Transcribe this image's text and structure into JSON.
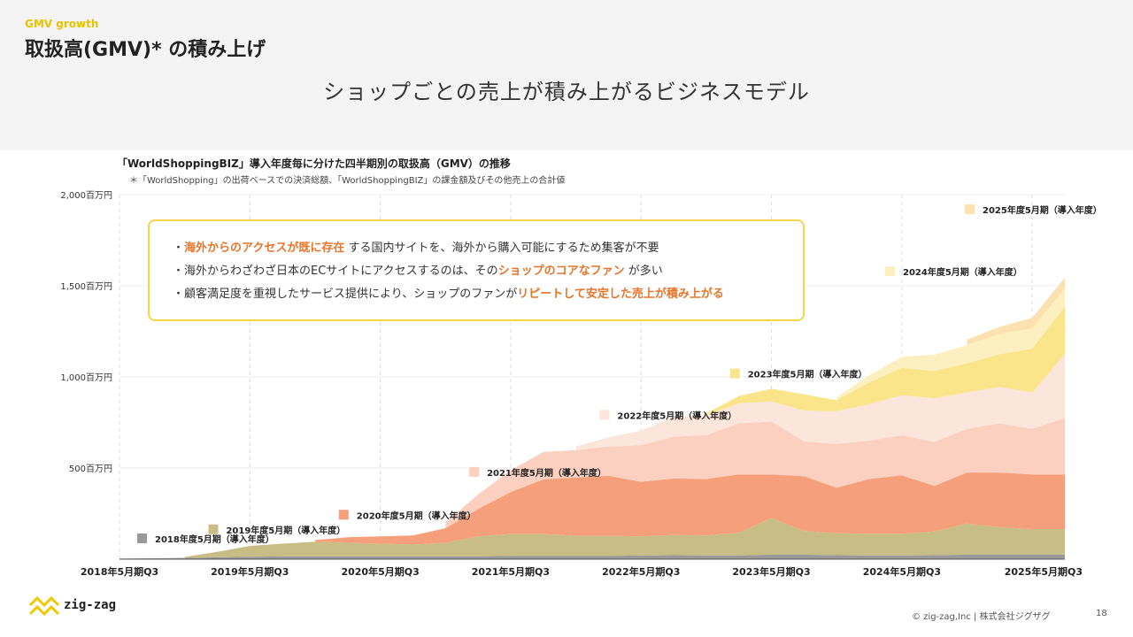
{
  "header": {
    "eyebrow": "GMV growth",
    "title": "取扱高(GMV)* の積み上げ",
    "subtitle": "ショップごとの売上が積み上がるビジネスモデル"
  },
  "callout": {
    "lines": [
      {
        "pre": "・",
        "em": "海外からのアクセスが既に存在",
        "post": " する国内サイトを、海外から購入可能にするため集客が不要"
      },
      {
        "pre": "・海外からわざわざ日本のECサイトにアクセスするのは、その",
        "em": "ショップのコアなファン",
        "post": " が多い"
      },
      {
        "pre": "・顧客満足度を重視したサービス提供により、ショップのファンが",
        "em": "リピートして安定した売上が積み上がる",
        "post": ""
      }
    ]
  },
  "footer": {
    "logo_text": "zig-zag",
    "copyright": "© zig-zag,Inc | 株式会社ジグザグ",
    "page_number": "18"
  },
  "chart_data": {
    "type": "area",
    "stacked": true,
    "title": "「WorldShoppingBIZ」導入年度毎に分けた四半期別の取扱高（GMV）の推移",
    "note": "＊「WorldShopping」の出荷ベースでの決済総額、「WorldShoppingBIZ」の課金額及びその他売上の合計値",
    "ylim": [
      0,
      2000
    ],
    "yticks": [
      {
        "value": 500,
        "label": "500百万円"
      },
      {
        "value": 1000,
        "label": "1,000百万円"
      },
      {
        "value": 1500,
        "label": "1,500百万円"
      },
      {
        "value": 2000,
        "label": "2,000百万円"
      }
    ],
    "xticks": [
      {
        "x": 0,
        "label": "2018年5月期Q3"
      },
      {
        "x": 4,
        "label": "2019年5月期Q3"
      },
      {
        "x": 8,
        "label": "2020年5月期Q3"
      },
      {
        "x": 12,
        "label": "2021年5月期Q3"
      },
      {
        "x": 16,
        "label": "2022年5月期Q3"
      },
      {
        "x": 20,
        "label": "2023年5月期Q3"
      },
      {
        "x": 24,
        "label": "2024年5月期Q3"
      },
      {
        "x": 28,
        "label": "2025年5月期Q3"
      }
    ],
    "grid": "vertical-dashed",
    "series": [
      {
        "name": "2018年度5月期（導入年度）",
        "color": "#999999",
        "start": 0,
        "values": [
          3,
          5,
          7,
          10,
          13,
          15,
          15,
          15,
          15,
          15,
          15,
          15,
          18,
          18,
          18,
          18,
          20,
          22,
          20,
          20,
          25,
          25,
          22,
          20,
          20,
          22,
          25,
          25,
          25,
          25
        ]
      },
      {
        "name": "2019年度5月期（導入年度）",
        "color": "#c8bd85",
        "start": 2,
        "values": [
          0,
          0,
          5,
          30,
          60,
          70,
          80,
          75,
          70,
          65,
          75,
          110,
          120,
          120,
          110,
          110,
          105,
          110,
          110,
          125,
          200,
          130,
          120,
          120,
          120,
          130,
          170,
          150,
          140,
          140
        ]
      },
      {
        "name": "2020年度5月期（導入年度）",
        "color": "#f5a07a",
        "start": 6,
        "values": [
          0,
          0,
          0,
          0,
          0,
          0,
          10,
          30,
          40,
          50,
          80,
          150,
          230,
          300,
          320,
          330,
          300,
          310,
          310,
          320,
          240,
          300,
          250,
          300,
          320,
          250,
          280,
          300,
          300,
          300
        ]
      },
      {
        "name": "2021年度5月期（導入年度）",
        "color": "#fbd0c0",
        "start": 10,
        "values": [
          0,
          0,
          0,
          0,
          0,
          0,
          0,
          0,
          0,
          0,
          30,
          80,
          120,
          150,
          150,
          160,
          200,
          230,
          240,
          280,
          290,
          190,
          240,
          210,
          220,
          240,
          240,
          270,
          250,
          310
        ]
      },
      {
        "name": "2022年度5月期（導入年度）",
        "color": "#fce5db",
        "start": 14,
        "values": [
          0,
          0,
          0,
          0,
          0,
          0,
          0,
          0,
          0,
          0,
          0,
          0,
          0,
          0,
          20,
          50,
          80,
          110,
          110,
          110,
          110,
          170,
          180,
          200,
          220,
          240,
          200,
          200,
          200,
          350
        ]
      },
      {
        "name": "2023年度5月期（導入年度）",
        "color": "#fae58a",
        "start": 18,
        "values": [
          0,
          0,
          0,
          0,
          0,
          0,
          0,
          0,
          0,
          0,
          0,
          0,
          0,
          0,
          0,
          0,
          0,
          0,
          10,
          40,
          70,
          90,
          60,
          120,
          150,
          150,
          160,
          180,
          240,
          260
        ]
      },
      {
        "name": "2024年度5月期（導入年度）",
        "color": "#fdf0c0",
        "start": 22,
        "values": [
          0,
          0,
          0,
          0,
          0,
          0,
          0,
          0,
          0,
          0,
          0,
          0,
          0,
          0,
          0,
          0,
          0,
          0,
          0,
          0,
          0,
          0,
          15,
          40,
          60,
          90,
          100,
          110,
          110,
          100
        ]
      },
      {
        "name": "2025年度5月期（導入年度）",
        "color": "#fbe2b0",
        "start": 26,
        "values": [
          0,
          0,
          0,
          0,
          0,
          0,
          0,
          0,
          0,
          0,
          0,
          0,
          0,
          0,
          0,
          0,
          0,
          0,
          0,
          0,
          0,
          0,
          0,
          0,
          0,
          0,
          30,
          40,
          60,
          60
        ]
      }
    ]
  }
}
